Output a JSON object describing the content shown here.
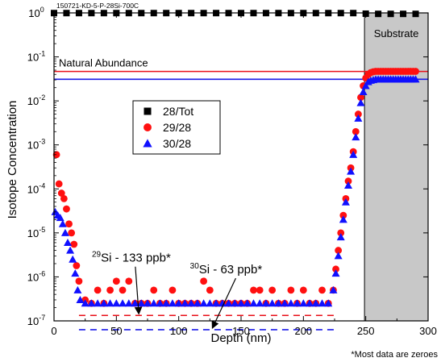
{
  "chart_data": {
    "type": "scatter",
    "title": "150721-KD-5-P-28Si-700C",
    "xlabel": "Depth (nm)",
    "ylabel": "Isotope Concentration",
    "xlim": [
      0,
      300
    ],
    "ylim": [
      1e-07,
      1
    ],
    "y_scale": "log",
    "x_ticks": [
      0,
      50,
      100,
      150,
      200,
      250,
      300
    ],
    "y_ticks": [
      {
        "exp": "0",
        "value": 1
      },
      {
        "exp": "-1",
        "value": 0.1
      },
      {
        "exp": "-2",
        "value": 0.01
      },
      {
        "exp": "-3",
        "value": 0.001
      },
      {
        "exp": "-4",
        "value": 0.0001
      },
      {
        "exp": "-5",
        "value": 1e-05
      },
      {
        "exp": "-6",
        "value": 1e-06
      },
      {
        "exp": "-7",
        "value": 1e-07
      }
    ],
    "legend_position": "upper-left (inside plot)",
    "footnote": "*Most data are zeroes",
    "substrate_region": {
      "label": "Substrate",
      "x_start": 249,
      "x_end": 300,
      "color": "#c8c8c8"
    },
    "reference_lines": [
      {
        "label": "Natural Abundance",
        "y": 0.0467,
        "color": "#e8101a",
        "style": "solid",
        "x_range": [
          0,
          300
        ]
      },
      {
        "label": "",
        "y": 0.031,
        "color": "#1a1ae8",
        "style": "solid",
        "x_range": [
          0,
          300
        ]
      },
      {
        "label": "",
        "y": 1.33e-07,
        "color": "#e8101a",
        "style": "dashed",
        "x_range": [
          20,
          228
        ]
      },
      {
        "label": "",
        "y": 6.3e-08,
        "color": "#1a1ae8",
        "style": "dashed",
        "x_range": [
          20,
          228
        ]
      }
    ],
    "annotations": [
      {
        "isotope_mass": "29",
        "text": "Si - 133 ppb*",
        "text_at": [
          62,
          2.2e-06
        ],
        "arrow_to": [
          68,
          1.33e-07
        ]
      },
      {
        "isotope_mass": "30",
        "text": "Si - 63 ppb*",
        "text_at": [
          138,
          1.2e-06
        ],
        "arrow_to": [
          127,
          6.3e-08
        ]
      }
    ],
    "series": [
      {
        "name": "28/Tot",
        "marker": "square",
        "color": "#000000",
        "x": [
          0,
          10,
          20,
          30,
          40,
          50,
          60,
          70,
          80,
          90,
          100,
          110,
          120,
          130,
          140,
          150,
          160,
          170,
          180,
          190,
          200,
          210,
          220,
          230,
          240,
          250,
          260,
          270,
          280,
          290
        ],
        "y": [
          0.99,
          0.99,
          0.99,
          0.99,
          0.99,
          0.99,
          0.99,
          0.99,
          0.99,
          0.99,
          0.99,
          0.99,
          0.99,
          0.99,
          0.99,
          0.99,
          0.99,
          0.99,
          0.99,
          0.99,
          0.99,
          0.99,
          0.99,
          0.99,
          0.99,
          0.96,
          0.95,
          0.95,
          0.95,
          0.95
        ]
      },
      {
        "name": "29/28",
        "marker": "circle",
        "color": "#ff1010",
        "x": [
          2,
          4,
          6,
          8,
          10,
          12,
          14,
          16,
          18,
          20,
          25,
          30,
          35,
          40,
          45,
          50,
          55,
          60,
          65,
          70,
          75,
          80,
          85,
          90,
          95,
          100,
          105,
          110,
          115,
          120,
          125,
          130,
          135,
          140,
          145,
          150,
          155,
          160,
          165,
          170,
          175,
          180,
          185,
          190,
          195,
          200,
          205,
          210,
          215,
          220,
          224,
          226,
          228,
          230,
          232,
          234,
          236,
          238,
          240,
          242,
          244,
          246,
          248,
          250,
          252,
          254,
          256,
          258,
          260,
          262,
          264,
          266,
          268,
          270,
          272,
          274,
          276,
          278,
          280,
          282,
          284,
          286,
          288,
          290
        ],
        "y": [
          0.0006,
          0.00013,
          8e-05,
          6e-05,
          3.5e-05,
          1.6e-05,
          1e-05,
          5.5e-06,
          1.8e-06,
          8e-07,
          3e-07,
          2.5e-07,
          5e-07,
          2.5e-07,
          5e-07,
          8e-07,
          5e-07,
          8e-07,
          2.5e-07,
          2.5e-07,
          2.5e-07,
          5e-07,
          2.5e-07,
          2.5e-07,
          5e-07,
          2.5e-07,
          2.5e-07,
          2.5e-07,
          2.5e-07,
          8e-07,
          5e-07,
          2.5e-07,
          2.5e-07,
          2.5e-07,
          2.5e-07,
          2.5e-07,
          2.5e-07,
          5e-07,
          5e-07,
          2.5e-07,
          5e-07,
          2.5e-07,
          2.5e-07,
          5e-07,
          2.5e-07,
          5e-07,
          2.5e-07,
          2.5e-07,
          5e-07,
          2.5e-07,
          5e-07,
          1.5e-06,
          4e-06,
          1e-05,
          2.5e-05,
          6e-05,
          0.00015,
          0.0003,
          0.0007,
          0.002,
          0.005,
          0.012,
          0.022,
          0.033,
          0.04,
          0.044,
          0.046,
          0.047,
          0.047,
          0.047,
          0.047,
          0.047,
          0.047,
          0.047,
          0.047,
          0.047,
          0.047,
          0.047,
          0.047,
          0.047,
          0.047,
          0.047,
          0.047,
          0.047
        ]
      },
      {
        "name": "30/28",
        "marker": "triangle",
        "color": "#1010ff",
        "x": [
          1,
          3,
          5,
          7,
          9,
          11,
          13,
          15,
          17,
          19,
          21,
          25,
          30,
          35,
          40,
          45,
          50,
          55,
          60,
          65,
          70,
          75,
          80,
          85,
          90,
          95,
          100,
          105,
          110,
          115,
          120,
          125,
          130,
          135,
          140,
          145,
          150,
          155,
          160,
          165,
          170,
          175,
          180,
          185,
          190,
          195,
          200,
          205,
          210,
          215,
          220,
          224,
          226,
          228,
          230,
          232,
          234,
          236,
          238,
          240,
          242,
          244,
          246,
          248,
          250,
          252,
          254,
          256,
          258,
          260,
          262,
          264,
          266,
          268,
          270,
          272,
          274,
          276,
          278,
          280,
          282,
          284,
          286,
          288,
          290
        ],
        "y": [
          3e-05,
          2.5e-05,
          2.2e-05,
          1.6e-05,
          1e-05,
          6e-06,
          4e-06,
          2.5e-06,
          1.2e-06,
          5e-07,
          3e-07,
          2.5e-07,
          2.5e-07,
          2.5e-07,
          2.5e-07,
          2.5e-07,
          2.5e-07,
          2.5e-07,
          2.5e-07,
          2.5e-07,
          2.5e-07,
          2.5e-07,
          2.5e-07,
          2.5e-07,
          2.5e-07,
          2.5e-07,
          2.5e-07,
          2.5e-07,
          2.5e-07,
          2.5e-07,
          2.5e-07,
          2.5e-07,
          2.5e-07,
          2.5e-07,
          2.5e-07,
          2.5e-07,
          2.5e-07,
          2.5e-07,
          2.5e-07,
          2.5e-07,
          2.5e-07,
          2.5e-07,
          2.5e-07,
          2.5e-07,
          2.5e-07,
          2.5e-07,
          2.5e-07,
          2.5e-07,
          2.5e-07,
          2.5e-07,
          2.5e-07,
          5e-07,
          1.2e-06,
          3e-06,
          8e-06,
          2e-05,
          5e-05,
          0.00012,
          0.00025,
          0.0006,
          0.0015,
          0.004,
          0.009,
          0.016,
          0.022,
          0.027,
          0.029,
          0.03,
          0.031,
          0.031,
          0.031,
          0.031,
          0.031,
          0.031,
          0.031,
          0.031,
          0.031,
          0.031,
          0.031,
          0.031,
          0.031,
          0.031,
          0.031,
          0.031,
          0.031
        ]
      }
    ]
  }
}
